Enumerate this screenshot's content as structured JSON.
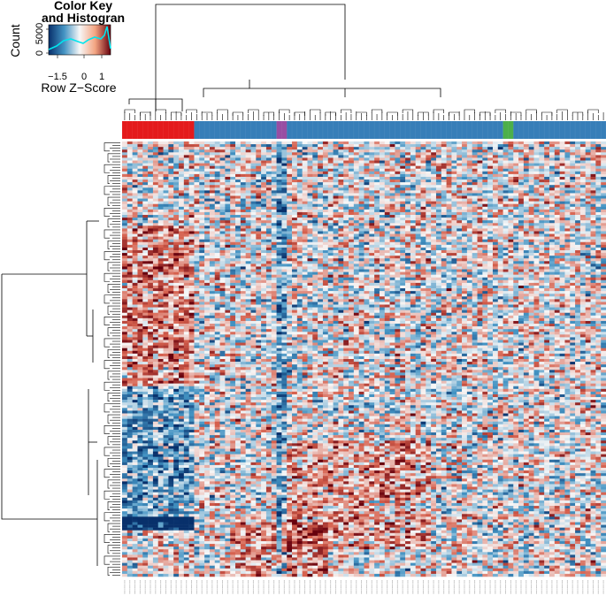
{
  "chart_data": {
    "type": "heatmap",
    "color_key": {
      "title_line1": "Color Key",
      "title_line2": "and Histogran",
      "ylabel": "Count",
      "y_ticks": [
        "0",
        "5000"
      ],
      "xlabel": "Row Z−Score",
      "x_ticks": [
        "−1.5",
        "0",
        "1"
      ],
      "x_tick_values": [
        -1.5,
        0,
        1
      ],
      "range": [
        -2,
        1.5
      ],
      "colors": {
        "low": "#08306b",
        "mid": "#f7f7f7",
        "high": "#67000d",
        "histogram": "#00e5ee"
      }
    },
    "column_groups": [
      {
        "color": "#e41a1c",
        "count": 14
      },
      {
        "color": "#377eb8",
        "count": 16
      },
      {
        "color": "#984ea3",
        "count": 2
      },
      {
        "color": "#377eb8",
        "count": 42
      },
      {
        "color": "#4daf4a",
        "count": 2
      },
      {
        "color": "#377eb8",
        "count": 18
      }
    ],
    "n_columns": 94,
    "n_rows": 160,
    "row_dendrogram": true,
    "column_dendrogram": true
  }
}
